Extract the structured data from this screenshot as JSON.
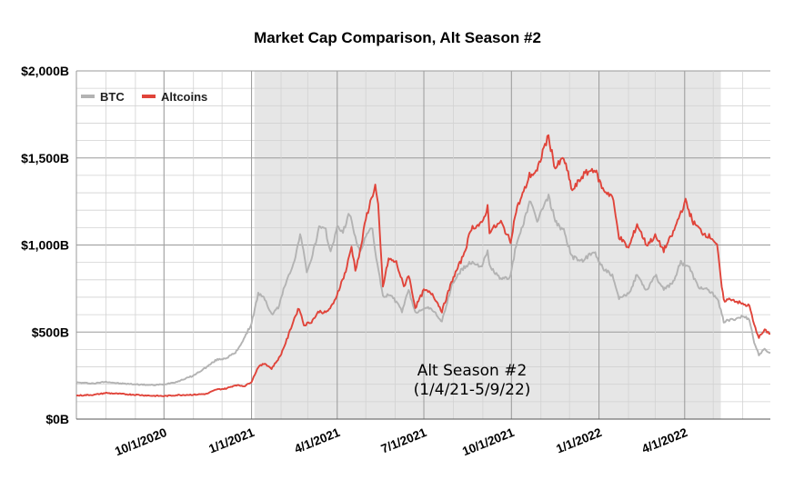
{
  "chart_data": {
    "type": "line",
    "title": "Market Cap Comparison, Alt Season #2",
    "xlabel": "",
    "ylabel": "",
    "x_range": [
      "2020-07-01",
      "2022-06-30"
    ],
    "ylim": [
      0,
      2000
    ],
    "y_ticks": [
      0,
      500,
      1000,
      1500,
      2000
    ],
    "y_tick_labels": [
      "$0B",
      "$500B",
      "$1,000B",
      "$1,500B",
      "$2,000B"
    ],
    "x_ticks": [
      "2020-10-01",
      "2021-01-01",
      "2021-04-01",
      "2021-07-01",
      "2021-10-01",
      "2022-01-01",
      "2022-04-01"
    ],
    "x_tick_labels": [
      "10/1/2020",
      "1/1/2021",
      "4/1/2021",
      "7/1/2021",
      "10/1/2021",
      "1/1/2022",
      "4/1/2022"
    ],
    "grid": true,
    "legend_position": "top-left",
    "shaded_region": {
      "start": "2021-01-04",
      "end": "2022-05-09",
      "label_line1": "Alt Season #2",
      "label_line2": "(1/4/21-5/9/22)"
    },
    "series": [
      {
        "name": "BTC",
        "color": "#b3b3b3",
        "points": [
          [
            "2020-07-01",
            210
          ],
          [
            "2020-07-20",
            205
          ],
          [
            "2020-08-01",
            215
          ],
          [
            "2020-08-15",
            205
          ],
          [
            "2020-09-01",
            200
          ],
          [
            "2020-09-20",
            195
          ],
          [
            "2020-10-01",
            200
          ],
          [
            "2020-10-15",
            215
          ],
          [
            "2020-11-01",
            250
          ],
          [
            "2020-11-15",
            300
          ],
          [
            "2020-11-25",
            340
          ],
          [
            "2020-12-05",
            350
          ],
          [
            "2020-12-15",
            380
          ],
          [
            "2020-12-25",
            470
          ],
          [
            "2021-01-01",
            550
          ],
          [
            "2021-01-08",
            720
          ],
          [
            "2021-01-15",
            690
          ],
          [
            "2021-01-22",
            600
          ],
          [
            "2021-01-29",
            640
          ],
          [
            "2021-02-08",
            820
          ],
          [
            "2021-02-15",
            900
          ],
          [
            "2021-02-21",
            1070
          ],
          [
            "2021-02-28",
            850
          ],
          [
            "2021-03-05",
            920
          ],
          [
            "2021-03-13",
            1100
          ],
          [
            "2021-03-20",
            1080
          ],
          [
            "2021-03-25",
            960
          ],
          [
            "2021-04-01",
            1100
          ],
          [
            "2021-04-07",
            1080
          ],
          [
            "2021-04-14",
            1180
          ],
          [
            "2021-04-20",
            1050
          ],
          [
            "2021-04-25",
            950
          ],
          [
            "2021-05-01",
            1060
          ],
          [
            "2021-05-08",
            1090
          ],
          [
            "2021-05-12",
            930
          ],
          [
            "2021-05-19",
            700
          ],
          [
            "2021-05-25",
            720
          ],
          [
            "2021-06-01",
            680
          ],
          [
            "2021-06-08",
            620
          ],
          [
            "2021-06-15",
            740
          ],
          [
            "2021-06-22",
            610
          ],
          [
            "2021-07-01",
            640
          ],
          [
            "2021-07-10",
            630
          ],
          [
            "2021-07-20",
            560
          ],
          [
            "2021-07-31",
            780
          ],
          [
            "2021-08-10",
            860
          ],
          [
            "2021-08-20",
            900
          ],
          [
            "2021-08-31",
            880
          ],
          [
            "2021-09-06",
            960
          ],
          [
            "2021-09-08",
            880
          ],
          [
            "2021-09-20",
            800
          ],
          [
            "2021-09-30",
            820
          ],
          [
            "2021-10-06",
            1000
          ],
          [
            "2021-10-15",
            1150
          ],
          [
            "2021-10-20",
            1250
          ],
          [
            "2021-10-28",
            1140
          ],
          [
            "2021-11-09",
            1280
          ],
          [
            "2021-11-16",
            1140
          ],
          [
            "2021-11-25",
            1080
          ],
          [
            "2021-12-04",
            930
          ],
          [
            "2021-12-15",
            910
          ],
          [
            "2021-12-27",
            960
          ],
          [
            "2022-01-05",
            870
          ],
          [
            "2022-01-15",
            820
          ],
          [
            "2022-01-22",
            690
          ],
          [
            "2022-02-01",
            720
          ],
          [
            "2022-02-10",
            830
          ],
          [
            "2022-02-20",
            740
          ],
          [
            "2022-03-01",
            830
          ],
          [
            "2022-03-10",
            740
          ],
          [
            "2022-03-20",
            790
          ],
          [
            "2022-03-28",
            900
          ],
          [
            "2022-04-05",
            880
          ],
          [
            "2022-04-15",
            760
          ],
          [
            "2022-04-25",
            740
          ],
          [
            "2022-05-05",
            700
          ],
          [
            "2022-05-09",
            620
          ],
          [
            "2022-05-12",
            560
          ],
          [
            "2022-05-20",
            570
          ],
          [
            "2022-06-01",
            590
          ],
          [
            "2022-06-08",
            575
          ],
          [
            "2022-06-13",
            440
          ],
          [
            "2022-06-18",
            370
          ],
          [
            "2022-06-24",
            400
          ],
          [
            "2022-06-30",
            380
          ]
        ]
      },
      {
        "name": "Altcoins",
        "color": "#e0443a",
        "points": [
          [
            "2020-07-01",
            135
          ],
          [
            "2020-07-20",
            140
          ],
          [
            "2020-08-01",
            150
          ],
          [
            "2020-08-15",
            145
          ],
          [
            "2020-09-01",
            140
          ],
          [
            "2020-09-15",
            135
          ],
          [
            "2020-10-01",
            132
          ],
          [
            "2020-10-15",
            138
          ],
          [
            "2020-11-01",
            140
          ],
          [
            "2020-11-15",
            145
          ],
          [
            "2020-11-25",
            170
          ],
          [
            "2020-12-05",
            175
          ],
          [
            "2020-12-15",
            195
          ],
          [
            "2020-12-25",
            190
          ],
          [
            "2021-01-01",
            215
          ],
          [
            "2021-01-08",
            300
          ],
          [
            "2021-01-15",
            320
          ],
          [
            "2021-01-22",
            290
          ],
          [
            "2021-01-31",
            360
          ],
          [
            "2021-02-08",
            470
          ],
          [
            "2021-02-15",
            580
          ],
          [
            "2021-02-20",
            640
          ],
          [
            "2021-02-25",
            540
          ],
          [
            "2021-03-05",
            560
          ],
          [
            "2021-03-13",
            620
          ],
          [
            "2021-03-20",
            610
          ],
          [
            "2021-03-28",
            660
          ],
          [
            "2021-04-03",
            750
          ],
          [
            "2021-04-10",
            850
          ],
          [
            "2021-04-16",
            990
          ],
          [
            "2021-04-20",
            860
          ],
          [
            "2021-04-25",
            960
          ],
          [
            "2021-05-01",
            1150
          ],
          [
            "2021-05-07",
            1270
          ],
          [
            "2021-05-11",
            1340
          ],
          [
            "2021-05-14",
            1220
          ],
          [
            "2021-05-19",
            760
          ],
          [
            "2021-05-25",
            920
          ],
          [
            "2021-06-02",
            900
          ],
          [
            "2021-06-10",
            760
          ],
          [
            "2021-06-15",
            830
          ],
          [
            "2021-06-22",
            640
          ],
          [
            "2021-07-01",
            740
          ],
          [
            "2021-07-10",
            720
          ],
          [
            "2021-07-20",
            620
          ],
          [
            "2021-07-31",
            800
          ],
          [
            "2021-08-10",
            920
          ],
          [
            "2021-08-15",
            1000
          ],
          [
            "2021-08-20",
            1100
          ],
          [
            "2021-08-31",
            1120
          ],
          [
            "2021-09-06",
            1220
          ],
          [
            "2021-09-08",
            1080
          ],
          [
            "2021-09-20",
            1130
          ],
          [
            "2021-09-30",
            1020
          ],
          [
            "2021-10-06",
            1200
          ],
          [
            "2021-10-15",
            1320
          ],
          [
            "2021-10-20",
            1400
          ],
          [
            "2021-10-28",
            1420
          ],
          [
            "2021-11-04",
            1560
          ],
          [
            "2021-11-09",
            1620
          ],
          [
            "2021-11-16",
            1440
          ],
          [
            "2021-11-25",
            1500
          ],
          [
            "2021-12-04",
            1310
          ],
          [
            "2021-12-15",
            1400
          ],
          [
            "2021-12-27",
            1440
          ],
          [
            "2022-01-05",
            1320
          ],
          [
            "2022-01-15",
            1280
          ],
          [
            "2022-01-22",
            1050
          ],
          [
            "2022-02-01",
            980
          ],
          [
            "2022-02-10",
            1120
          ],
          [
            "2022-02-20",
            1000
          ],
          [
            "2022-03-01",
            1050
          ],
          [
            "2022-03-10",
            970
          ],
          [
            "2022-03-20",
            1070
          ],
          [
            "2022-03-28",
            1190
          ],
          [
            "2022-04-02",
            1250
          ],
          [
            "2022-04-10",
            1130
          ],
          [
            "2022-04-20",
            1070
          ],
          [
            "2022-04-30",
            1040
          ],
          [
            "2022-05-05",
            1000
          ],
          [
            "2022-05-09",
            800
          ],
          [
            "2022-05-12",
            680
          ],
          [
            "2022-05-20",
            690
          ],
          [
            "2022-06-01",
            660
          ],
          [
            "2022-06-08",
            650
          ],
          [
            "2022-06-13",
            540
          ],
          [
            "2022-06-18",
            470
          ],
          [
            "2022-06-24",
            510
          ],
          [
            "2022-06-30",
            490
          ]
        ]
      }
    ]
  }
}
